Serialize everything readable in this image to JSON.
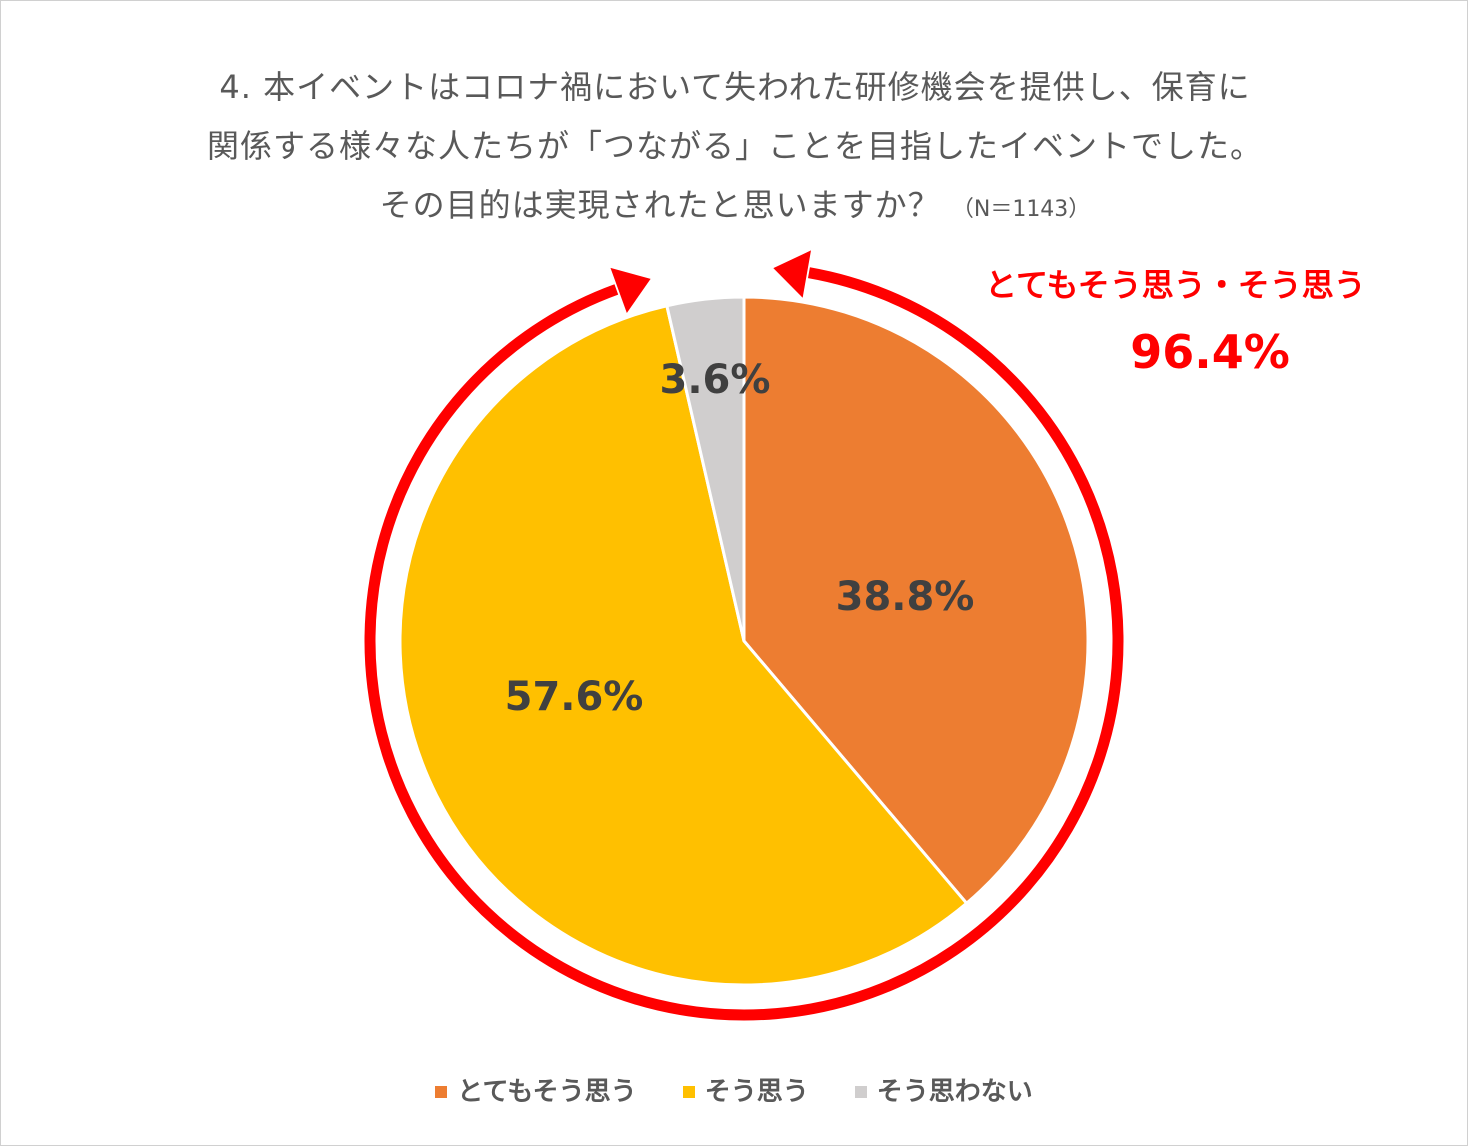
{
  "chart_data": {
    "type": "pie",
    "title_lines": [
      "4.  本イベントはコロナ禍において失われた研修機会を提供し、保育に",
      "関係する様々な人たちが「つながる」ことを目指したイベントでした。",
      "その目的は実現されたと思いますか？"
    ],
    "sample_size_label": "（N＝1143）",
    "categories": [
      "とてもそう思う",
      "そう思う",
      "そう思わない"
    ],
    "values": [
      38.8,
      57.6,
      3.6
    ],
    "data_labels": [
      "38.8%",
      "57.6%",
      "3.6%"
    ],
    "colors": [
      "#ed7d31",
      "#ffc000",
      "#d0cece"
    ],
    "start_angle_deg": 0,
    "direction": "clockwise",
    "legend_position": "bottom",
    "annotation": {
      "label": "とてもそう思う・そう思う",
      "value": "96.4%",
      "color": "#ff0000"
    }
  }
}
